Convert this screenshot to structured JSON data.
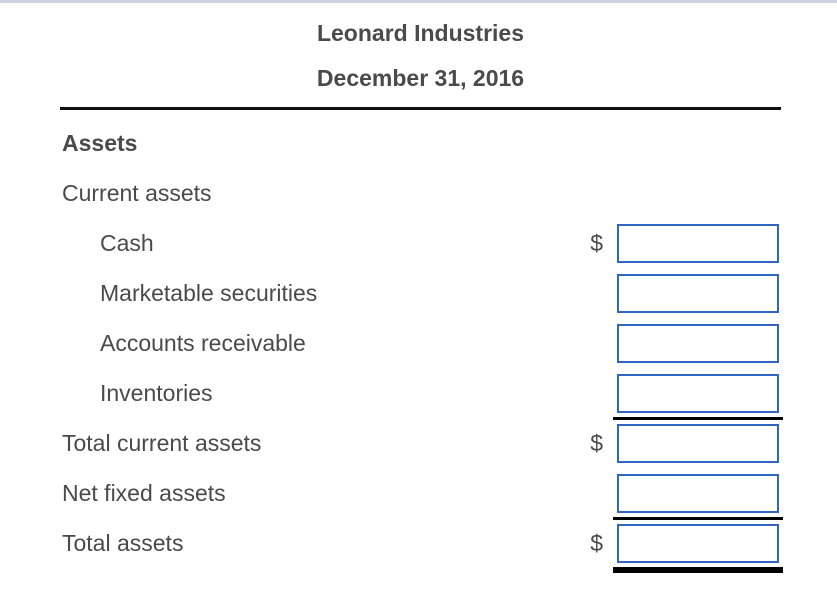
{
  "statement": {
    "title": "Leonard Industries",
    "date": "December 31, 2016",
    "section_heading": "Assets",
    "currency_symbol": "$",
    "rows": [
      {
        "label": "Current assets"
      },
      {
        "label": "Cash",
        "currency": "$",
        "value": ""
      },
      {
        "label": "Marketable securities",
        "value": ""
      },
      {
        "label": "Accounts receivable",
        "value": ""
      },
      {
        "label": "Inventories",
        "value": "",
        "rule_after": "single"
      },
      {
        "label": "Total current assets",
        "currency": "$",
        "value": ""
      },
      {
        "label": "Net fixed assets",
        "value": "",
        "rule_after": "single"
      },
      {
        "label": "Total assets",
        "currency": "$",
        "value": "",
        "rule_after": "double"
      }
    ],
    "colors": {
      "input_border": "#3166c3",
      "rule": "#000000",
      "page_top_border": "#ccd3e3",
      "text": "#4a4a4a"
    }
  }
}
